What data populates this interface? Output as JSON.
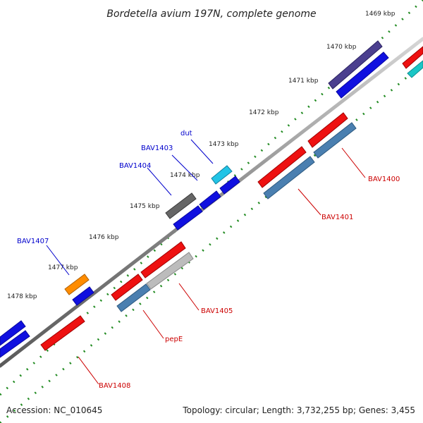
{
  "header": {
    "title": "Bordetella avium 197N, complete genome"
  },
  "footer": {
    "accession": "Accession: NC_010645",
    "summary": "Topology: circular; Length: 3,732,255 bp; Genes: 3,455"
  },
  "ticks": [
    {
      "label": "1469 kbp"
    },
    {
      "label": "1470 kbp"
    },
    {
      "label": "1471 kbp"
    },
    {
      "label": "1472 kbp"
    },
    {
      "label": "1473 kbp"
    },
    {
      "label": "1474 kbp"
    },
    {
      "label": "1475 kbp"
    },
    {
      "label": "1476 kbp"
    },
    {
      "label": "1477 kbp"
    },
    {
      "label": "1478 kbp"
    }
  ],
  "gene_labels": [
    {
      "text": "dut",
      "strand": "forward"
    },
    {
      "text": "BAV1403",
      "strand": "forward"
    },
    {
      "text": "BAV1404",
      "strand": "forward"
    },
    {
      "text": "BAV1407",
      "strand": "forward"
    },
    {
      "text": "BAV1400",
      "strand": "reverse"
    },
    {
      "text": "BAV1401",
      "strand": "reverse"
    },
    {
      "text": "BAV1405",
      "strand": "reverse"
    },
    {
      "text": "pepE",
      "strand": "reverse"
    },
    {
      "text": "BAV1408",
      "strand": "reverse"
    }
  ],
  "colors": {
    "backbone": "#888888",
    "tick_marks": "#228b22",
    "forward_label": "#0000cc",
    "reverse_label": "#cc0000",
    "gene_blue": "#1010e0",
    "gene_red": "#ee1111",
    "gene_steelblue": "#4a7fb0",
    "gene_slate": "#4b3f8f",
    "gene_cyan": "#22c4e6",
    "gene_gray": "#666666",
    "gene_orange": "#ff8c00",
    "gene_lightgray": "#bcbcbc",
    "gene_teal": "#1ac6c6"
  }
}
